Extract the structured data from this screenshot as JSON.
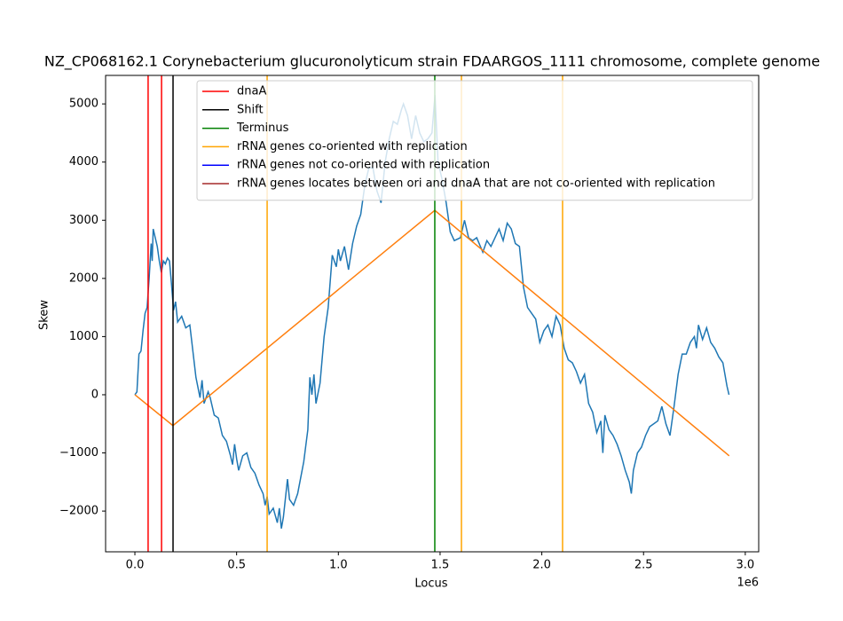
{
  "chart_data": {
    "type": "line",
    "title": "NZ_CP068162.1 Corynebacterium glucuronolyticum strain FDAARGOS_1111 chromosome, complete genome",
    "x_label": "Locus",
    "y_label": "Skew",
    "x_offset_label": "1e6",
    "xlim": [
      -144000,
      3066000
    ],
    "ylim": [
      -2700,
      5490
    ],
    "xticks": [
      {
        "value": 0,
        "label": "0.0"
      },
      {
        "value": 500000,
        "label": "0.5"
      },
      {
        "value": 1000000,
        "label": "1.0"
      },
      {
        "value": 1500000,
        "label": "1.5"
      },
      {
        "value": 2000000,
        "label": "2.0"
      },
      {
        "value": 2500000,
        "label": "2.5"
      },
      {
        "value": 3000000,
        "label": "3.0"
      }
    ],
    "yticks": [
      {
        "value": -2000,
        "label": "−2000"
      },
      {
        "value": -1000,
        "label": "−1000"
      },
      0,
      1000,
      2000,
      3000,
      4000,
      5000
    ],
    "skew": {
      "color": "#1f77b4",
      "x": [
        0,
        10000,
        20000,
        30000,
        40000,
        50000,
        60000,
        70000,
        80000,
        85000,
        90000,
        100000,
        110000,
        120000,
        130000,
        140000,
        150000,
        160000,
        170000,
        180000,
        190000,
        200000,
        210000,
        230000,
        250000,
        270000,
        290000,
        300000,
        320000,
        330000,
        340000,
        360000,
        370000,
        390000,
        410000,
        430000,
        450000,
        470000,
        480000,
        490000,
        500000,
        510000,
        530000,
        550000,
        570000,
        590000,
        610000,
        630000,
        640000,
        650000,
        660000,
        680000,
        700000,
        710000,
        720000,
        730000,
        750000,
        760000,
        780000,
        800000,
        830000,
        850000,
        860000,
        870000,
        880000,
        890000,
        910000,
        930000,
        950000,
        970000,
        990000,
        1000000,
        1010000,
        1030000,
        1050000,
        1070000,
        1090000,
        1110000,
        1130000,
        1150000,
        1170000,
        1190000,
        1210000,
        1230000,
        1250000,
        1270000,
        1290000,
        1310000,
        1320000,
        1340000,
        1360000,
        1380000,
        1400000,
        1420000,
        1440000,
        1460000,
        1475000,
        1490000,
        1510000,
        1530000,
        1550000,
        1570000,
        1600000,
        1620000,
        1640000,
        1660000,
        1680000,
        1710000,
        1730000,
        1750000,
        1770000,
        1790000,
        1810000,
        1830000,
        1850000,
        1870000,
        1890000,
        1910000,
        1930000,
        1950000,
        1970000,
        1990000,
        2010000,
        2030000,
        2050000,
        2070000,
        2090000,
        2110000,
        2130000,
        2150000,
        2170000,
        2190000,
        2210000,
        2230000,
        2250000,
        2270000,
        2290000,
        2300000,
        2310000,
        2330000,
        2350000,
        2370000,
        2390000,
        2410000,
        2430000,
        2440000,
        2450000,
        2470000,
        2490000,
        2510000,
        2530000,
        2550000,
        2570000,
        2590000,
        2610000,
        2630000,
        2650000,
        2670000,
        2690000,
        2710000,
        2730000,
        2750000,
        2760000,
        2770000,
        2790000,
        2810000,
        2830000,
        2850000,
        2870000,
        2890000,
        2900000,
        2910000,
        2920000
      ],
      "values": [
        0,
        50,
        700,
        750,
        1100,
        1400,
        1500,
        2000,
        2600,
        2300,
        2850,
        2700,
        2550,
        2300,
        2100,
        2300,
        2250,
        2350,
        2300,
        1900,
        1450,
        1600,
        1250,
        1350,
        1150,
        1200,
        600,
        300,
        -50,
        250,
        -150,
        50,
        -50,
        -350,
        -400,
        -700,
        -800,
        -1050,
        -1200,
        -850,
        -1100,
        -1300,
        -1050,
        -1000,
        -1250,
        -1350,
        -1550,
        -1700,
        -1900,
        -1750,
        -2050,
        -1950,
        -2200,
        -1950,
        -2300,
        -2100,
        -1450,
        -1800,
        -1900,
        -1700,
        -1150,
        -600,
        300,
        0,
        350,
        -150,
        200,
        1000,
        1500,
        2400,
        2200,
        2500,
        2300,
        2550,
        2150,
        2600,
        2900,
        3100,
        3600,
        3900,
        3900,
        3500,
        3300,
        4000,
        4400,
        4700,
        4650,
        4900,
        5000,
        4800,
        4400,
        4800,
        4500,
        4350,
        4400,
        4500,
        5150,
        4000,
        3700,
        3300,
        2800,
        2650,
        2700,
        3000,
        2700,
        2650,
        2700,
        2450,
        2650,
        2550,
        2700,
        2850,
        2650,
        2950,
        2850,
        2600,
        2550,
        1850,
        1500,
        1400,
        1300,
        900,
        1100,
        1200,
        1000,
        1350,
        1200,
        800,
        600,
        550,
        400,
        200,
        350,
        -150,
        -300,
        -650,
        -450,
        -1000,
        -350,
        -600,
        -700,
        -850,
        -1050,
        -1300,
        -1500,
        -1700,
        -1300,
        -1000,
        -900,
        -700,
        -550,
        -500,
        -450,
        -200,
        -500,
        -700,
        -200,
        350,
        700,
        700,
        900,
        1000,
        800,
        1200,
        950,
        1150,
        900,
        800,
        650,
        550,
        350,
        150,
        0
      ]
    },
    "theoretical": {
      "color": "#ff7f0e",
      "x": [
        0,
        187000,
        1474000,
        2921000
      ],
      "values": [
        0,
        -530,
        3170,
        -1050
      ]
    },
    "markers": [
      {
        "name": "dnaA",
        "color": "#ff0000",
        "positions": [
          65000,
          131000
        ]
      },
      {
        "name": "Shift",
        "color": "#000000",
        "positions": [
          187500
        ]
      },
      {
        "name": "Terminus",
        "color": "#008000",
        "positions": [
          1474000
        ]
      },
      {
        "name": "rRNA genes co-oriented with replication",
        "color": "#ffa500",
        "positions": [
          650000,
          1605000,
          2102000
        ]
      },
      {
        "name": "rRNA genes not co-oriented with replication",
        "color": "#0000ff",
        "positions": []
      },
      {
        "name": "rRNA genes locates between ori and dnaA that are not co-oriented with replication",
        "color": "#a52a2a",
        "positions": []
      }
    ]
  }
}
